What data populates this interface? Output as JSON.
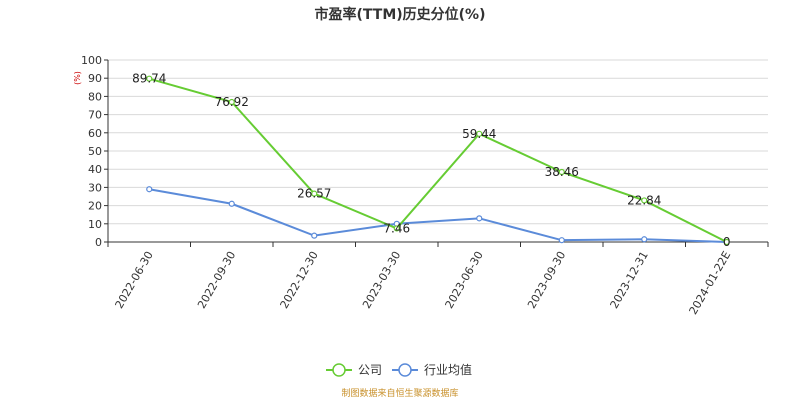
{
  "chart_data": {
    "type": "line",
    "title": "市盈率(TTM)历史分位(%)",
    "ylabel": "(%)",
    "ylim": [
      0,
      100
    ],
    "yticks": [
      0,
      10,
      20,
      30,
      40,
      50,
      60,
      70,
      80,
      90,
      100
    ],
    "categories": [
      "2022-06-30",
      "2022-09-30",
      "2022-12-30",
      "2023-03-30",
      "2023-06-30",
      "2023-09-30",
      "2023-12-31",
      "2024-01-22E"
    ],
    "series": [
      {
        "name": "公司",
        "color": "#66cc33",
        "values": [
          89.74,
          76.92,
          26.57,
          7.46,
          59.44,
          38.46,
          22.84,
          0
        ],
        "labels": [
          "89.74",
          "76.92",
          "26.57",
          "7.46",
          "59.44",
          "38.46",
          "22.84",
          "0"
        ]
      },
      {
        "name": "行业均值",
        "color": "#5b8bd9",
        "values": [
          29,
          21,
          3.5,
          10,
          13,
          1,
          1.5,
          0
        ]
      }
    ],
    "grid": true,
    "legend_position": "bottom-center"
  },
  "source": "制图数据来自恒生聚源数据库"
}
